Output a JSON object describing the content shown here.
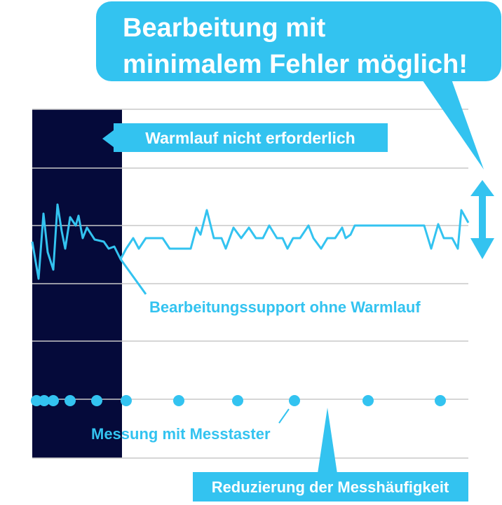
{
  "headline": "Bearbeitung mit\nminimalem Fehler möglich!",
  "warmup_label": "Warmlauf nicht erforderlich",
  "support_label": "Bearbeitungssupport ohne Warmlauf",
  "probe_label": "Messung mit Messtaster",
  "reduction_label": "Reduzierung der Messhäufigkeit",
  "colors": {
    "accent": "#33c3f0",
    "dark": "#050a3a",
    "grid": "#c8c8c8",
    "white": "#ffffff"
  }
}
